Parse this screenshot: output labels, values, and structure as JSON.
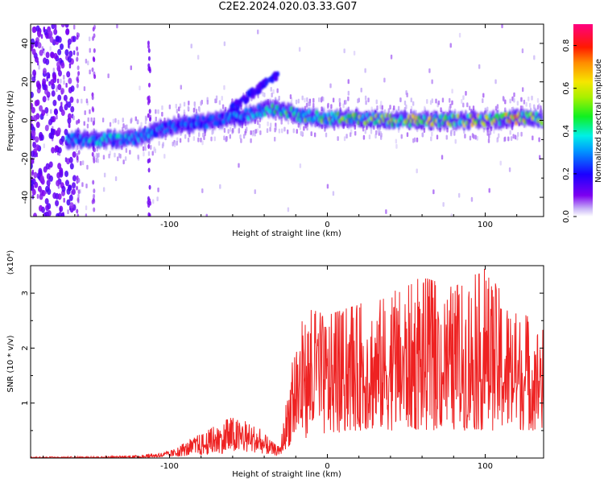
{
  "title": "C2E2.2024.020.03.33.G07",
  "chart_data": [
    {
      "type": "heatmap",
      "title": "C2E2.2024.020.03.33.G07",
      "xlabel": "Height of straight line (km)",
      "ylabel": "Frequency (Hz)",
      "xlim": [
        -188,
        137
      ],
      "ylim": [
        -50,
        50
      ],
      "x_ticks": [
        -100,
        0,
        100
      ],
      "y_ticks": [
        40,
        20,
        0,
        -20,
        -40
      ],
      "x_tick_labels": [
        "-100",
        "0",
        "100"
      ],
      "y_tick_labels": [
        "40",
        "20",
        "0",
        "-20",
        "-40"
      ],
      "colorbar": {
        "label": "Normalized spectral amplitude",
        "range": [
          0,
          0.9
        ],
        "ticks": [
          0.0,
          0.2,
          0.4,
          0.6,
          0.8
        ],
        "tick_labels": [
          "0.0",
          "0.2",
          "0.4",
          "0.6",
          "0.8"
        ]
      },
      "ridge": {
        "x": [
          -160,
          -140,
          -120,
          -105,
          -90,
          -70,
          -50,
          -35,
          -20,
          0,
          20,
          40,
          60,
          80,
          100,
          120,
          135
        ],
        "freq": [
          -10,
          -10,
          -9,
          -4,
          -2,
          0,
          3,
          6,
          3,
          1,
          1,
          0,
          0,
          0,
          0,
          1,
          1
        ],
        "amplitude": [
          0.35,
          0.4,
          0.35,
          0.3,
          0.3,
          0.3,
          0.35,
          0.45,
          0.5,
          0.5,
          0.55,
          0.55,
          0.6,
          0.6,
          0.65,
          0.7,
          0.65
        ]
      }
    },
    {
      "type": "line",
      "xlabel": "Height of straight line (km)",
      "ylabel": "SNR (10 * v/v)",
      "multiplier_label": "(x10⁴)",
      "xlim": [
        -188,
        137
      ],
      "ylim": [
        0,
        3.5
      ],
      "x_ticks": [
        -100,
        0,
        100
      ],
      "y_ticks": [
        1,
        2,
        3
      ],
      "x_tick_labels": [
        "-100",
        "0",
        "100"
      ],
      "y_tick_labels": [
        "1",
        "2",
        "3"
      ],
      "color": "#ee2222",
      "envelope": {
        "x": [
          -188,
          -140,
          -120,
          -100,
          -80,
          -60,
          -45,
          -35,
          -30,
          -25,
          -20,
          -10,
          0,
          20,
          40,
          60,
          80,
          100,
          120,
          137
        ],
        "min": [
          0.0,
          0.0,
          0.0,
          0.02,
          0.05,
          0.1,
          0.1,
          0.05,
          0.05,
          0.2,
          0.3,
          0.4,
          0.4,
          0.5,
          0.5,
          0.5,
          0.5,
          0.5,
          0.5,
          0.5
        ],
        "max": [
          0.02,
          0.03,
          0.05,
          0.12,
          0.45,
          0.75,
          0.6,
          0.3,
          0.2,
          1.3,
          2.4,
          2.7,
          2.6,
          2.8,
          3.0,
          3.3,
          3.1,
          3.45,
          2.7,
          2.4
        ]
      }
    }
  ]
}
